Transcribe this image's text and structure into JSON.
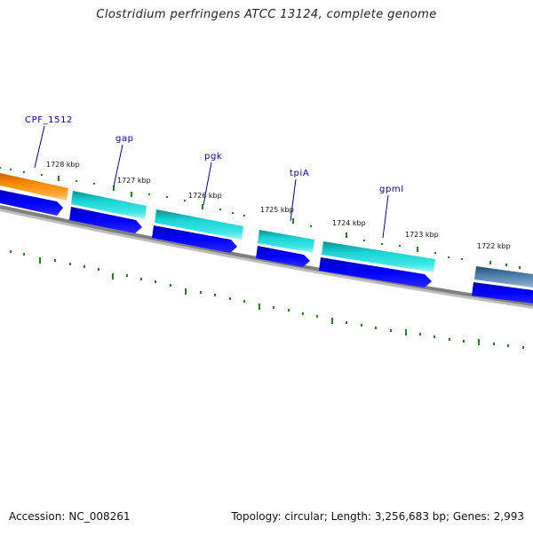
{
  "title": "Clostridium perfringens ATCC 13124, complete genome",
  "footer": {
    "accession_label": "Accession:",
    "accession": "NC_008261",
    "topology_text": "Topology: circular; Length: 3,256,683 bp; Genes: 2,993"
  },
  "colors": {
    "cds_forward": "#0000ee",
    "gene_teal": "#16cfcf",
    "gene_orange": "#ff8c00",
    "gene_steel": "#4a7ba8",
    "backbone": "#808080",
    "tick": "#1a8a1a",
    "gene_label": "#0000aa"
  },
  "scale_labels": [
    "1728 kbp",
    "1727 kbp",
    "1726 kbp",
    "1725 kbp",
    "1724 kbp",
    "1723 kbp",
    "1722 kbp"
  ],
  "gene_labels": [
    "CPF_1512",
    "gap",
    "pgk",
    "tpiA",
    "gpmI"
  ]
}
